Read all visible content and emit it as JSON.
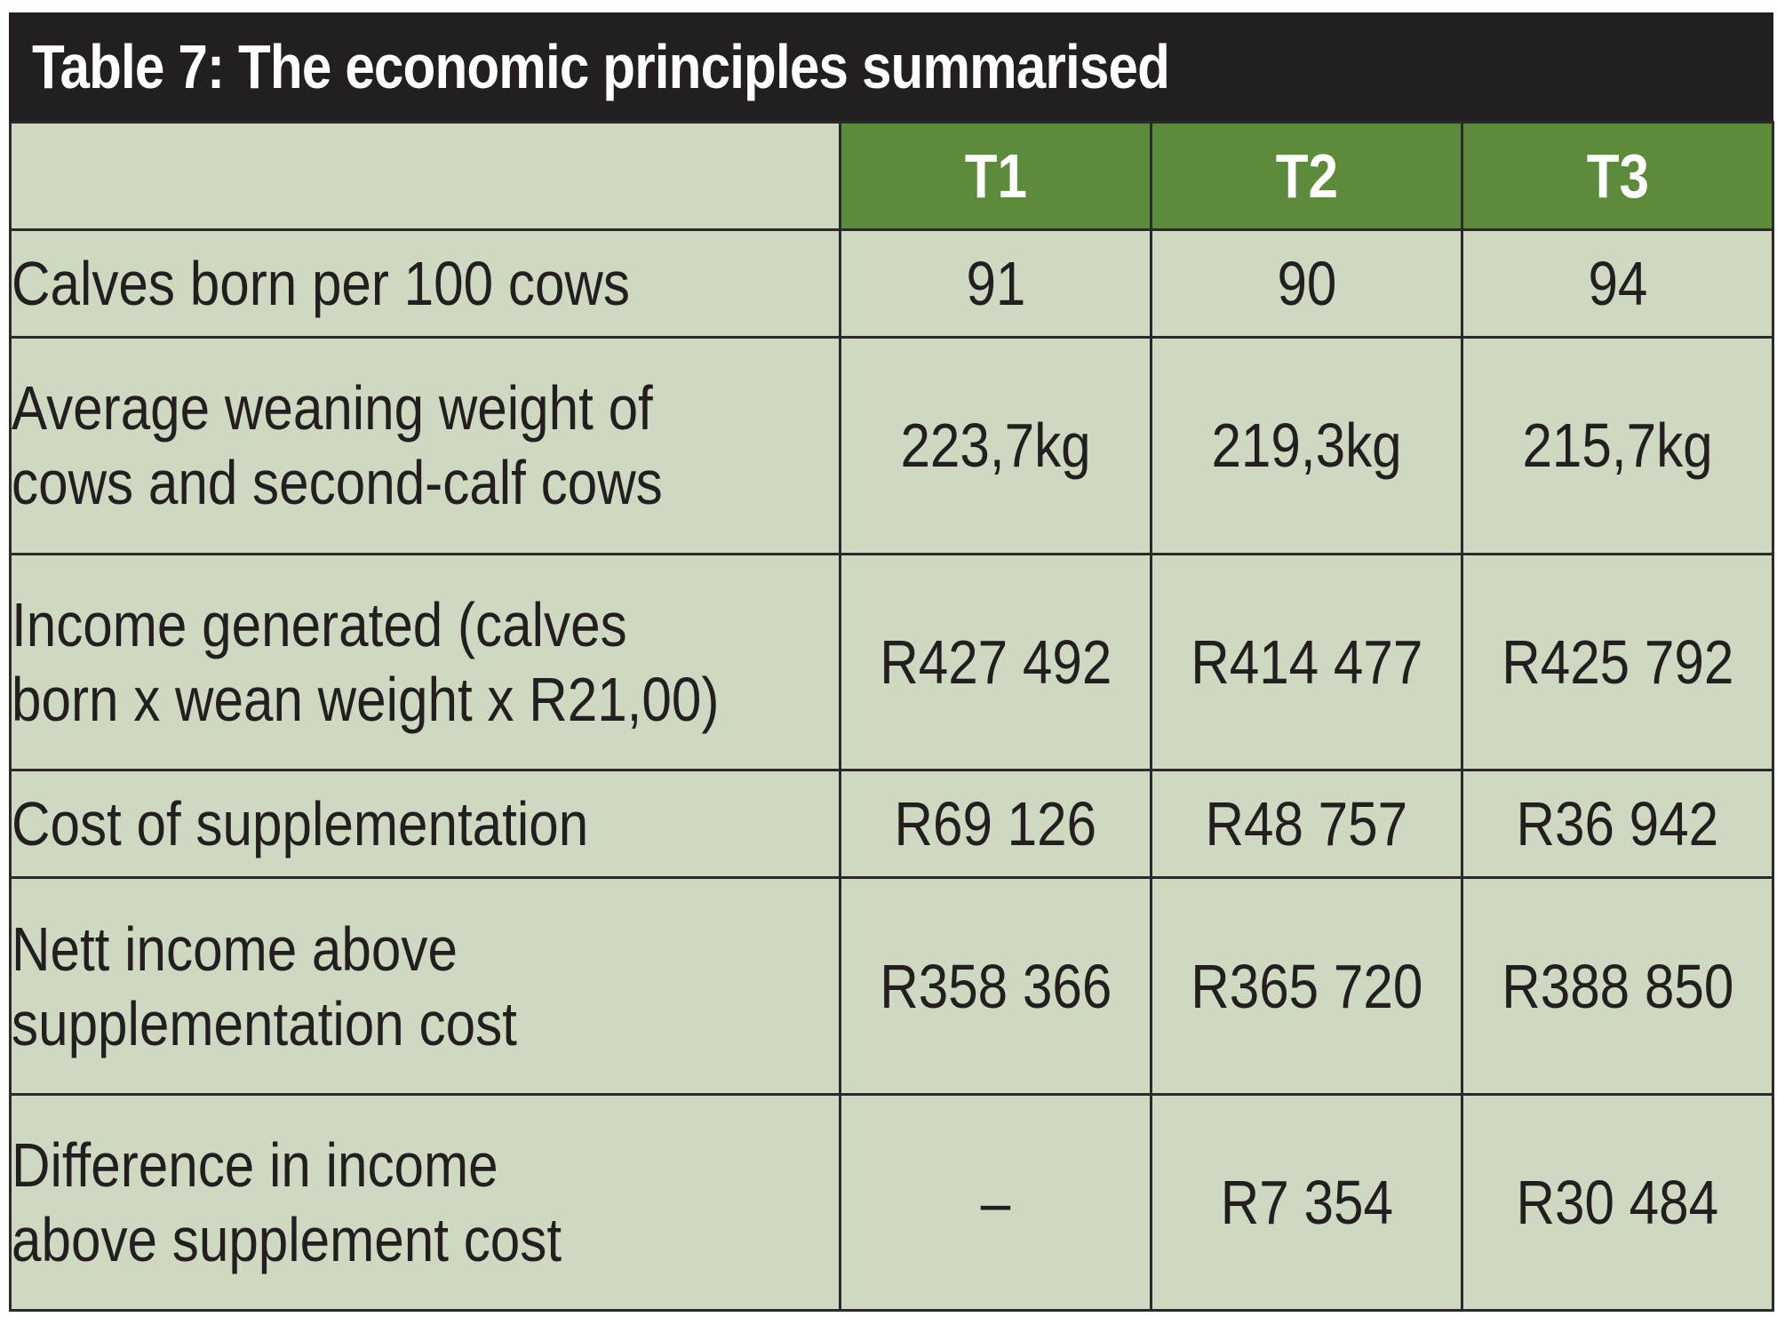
{
  "title": "Table 7: The economic principles summarised",
  "columns": [
    "T1",
    "T2",
    "T3"
  ],
  "rows": [
    {
      "label": "Calves born per 100 cows",
      "values": [
        "91",
        "90",
        "94"
      ]
    },
    {
      "label": "Average weaning weight of\ncows and second-calf cows",
      "values": [
        "223,7kg",
        "219,3kg",
        "215,7kg"
      ]
    },
    {
      "label": "Income generated (calves\nborn x wean weight x R21,00)",
      "values": [
        "R427 492",
        "R414 477",
        "R425 792"
      ]
    },
    {
      "label": "Cost of supplementation",
      "values": [
        "R69 126",
        "R48 757",
        "R36 942"
      ]
    },
    {
      "label": "Nett income above\nsupplementation cost",
      "values": [
        "R358 366",
        "R365 720",
        "R388 850"
      ]
    },
    {
      "label": "Difference in income\nabove supplement cost",
      "values": [
        "–",
        "R7 354",
        "R30 484"
      ]
    }
  ],
  "colors": {
    "title_bg": "#231f20",
    "header_green": "#5b8b3b",
    "cell_bg": "#cfd8c0",
    "border": "#2a2a2a"
  }
}
